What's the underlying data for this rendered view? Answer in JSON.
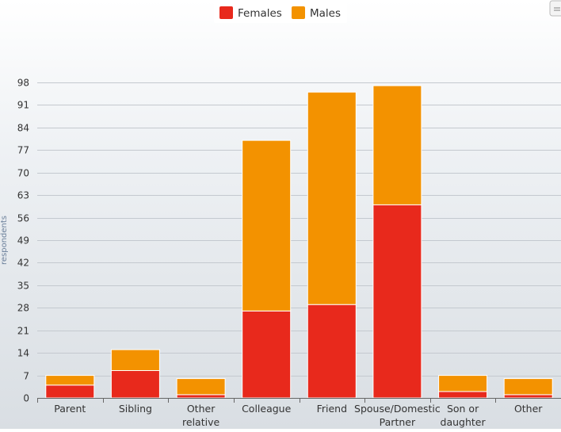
{
  "chart_data": {
    "type": "bar",
    "stacked": true,
    "categories": [
      [
        "Parent"
      ],
      [
        "Sibling"
      ],
      [
        "Other",
        "relative"
      ],
      [
        "Colleague"
      ],
      [
        "Friend"
      ],
      [
        "Spouse/Domestic",
        "Partner"
      ],
      [
        "Son or",
        "daughter"
      ],
      [
        "Other"
      ]
    ],
    "series": [
      {
        "name": "Females",
        "color": "#e8291c",
        "values": [
          4,
          8.5,
          1,
          27,
          29,
          60,
          2,
          1
        ]
      },
      {
        "name": "Males",
        "color": "#f39200",
        "values": [
          3,
          6.5,
          5,
          53,
          66,
          37,
          5,
          5
        ]
      }
    ],
    "ylabel": "respondents",
    "ylim": [
      0,
      98
    ],
    "yticks": [
      0,
      7,
      14,
      21,
      28,
      35,
      42,
      49,
      56,
      63,
      70,
      77,
      84,
      91,
      98
    ],
    "grid": true,
    "legend": "top-center"
  }
}
